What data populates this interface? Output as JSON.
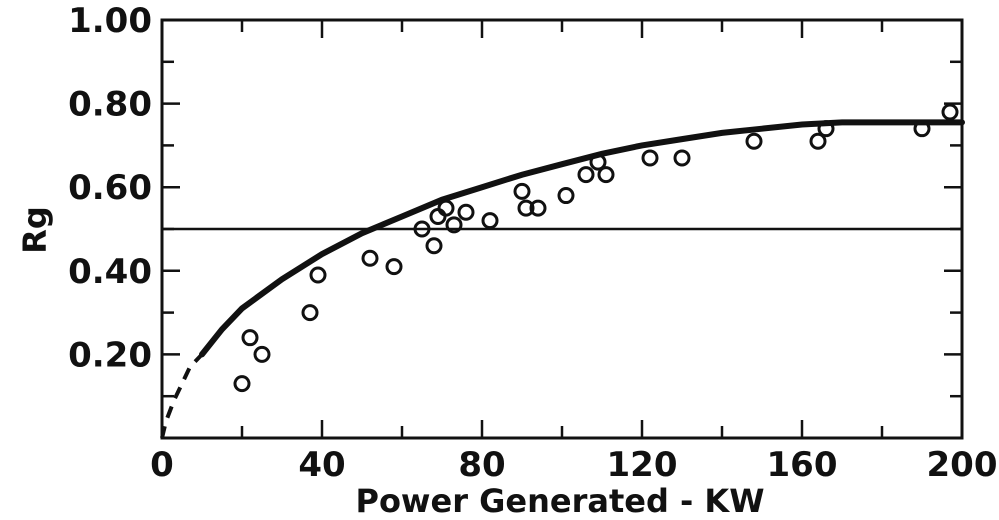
{
  "chart_data": {
    "type": "scatter",
    "title": "",
    "xlabel": "Power Generated - KW",
    "ylabel": "Rg",
    "xlim": [
      0,
      200
    ],
    "ylim": [
      0,
      1.0
    ],
    "x_ticks": [
      0,
      40,
      80,
      120,
      160,
      200
    ],
    "x_tick_labels": [
      "0",
      "40",
      "80",
      "120",
      "160",
      "200"
    ],
    "y_ticks": [
      0.2,
      0.4,
      0.6,
      0.8,
      1.0
    ],
    "y_tick_labels": [
      "0.20",
      "0.40",
      "0.60",
      "0.80",
      "1.00"
    ],
    "grid": false,
    "legend": "none",
    "reference_line": {
      "y": 0.5
    },
    "series": [
      {
        "type": "scatter",
        "marker": "open-circle",
        "x": [
          20,
          22,
          25,
          37,
          39,
          52,
          58,
          65,
          68,
          69,
          71,
          73,
          76,
          82,
          90,
          91,
          94,
          101,
          106,
          109,
          111,
          122,
          130,
          148,
          164,
          166,
          190,
          197
        ],
        "y": [
          0.13,
          0.24,
          0.2,
          0.3,
          0.39,
          0.43,
          0.41,
          0.5,
          0.46,
          0.53,
          0.55,
          0.51,
          0.54,
          0.52,
          0.59,
          0.55,
          0.55,
          0.58,
          0.63,
          0.66,
          0.63,
          0.67,
          0.67,
          0.71,
          0.71,
          0.74,
          0.74,
          0.78
        ]
      },
      {
        "type": "line",
        "style": "solid",
        "x": [
          10,
          15,
          20,
          30,
          40,
          50,
          60,
          70,
          80,
          90,
          100,
          110,
          120,
          130,
          140,
          150,
          160,
          170,
          180,
          190,
          200
        ],
        "y": [
          0.2,
          0.26,
          0.31,
          0.38,
          0.44,
          0.49,
          0.53,
          0.57,
          0.6,
          0.63,
          0.655,
          0.68,
          0.7,
          0.715,
          0.73,
          0.74,
          0.75,
          0.755,
          0.755,
          0.755,
          0.755
        ]
      },
      {
        "type": "line",
        "style": "dashed",
        "x": [
          0,
          1,
          3,
          5,
          7,
          10
        ],
        "y": [
          0.0,
          0.04,
          0.09,
          0.13,
          0.17,
          0.2
        ]
      }
    ]
  }
}
